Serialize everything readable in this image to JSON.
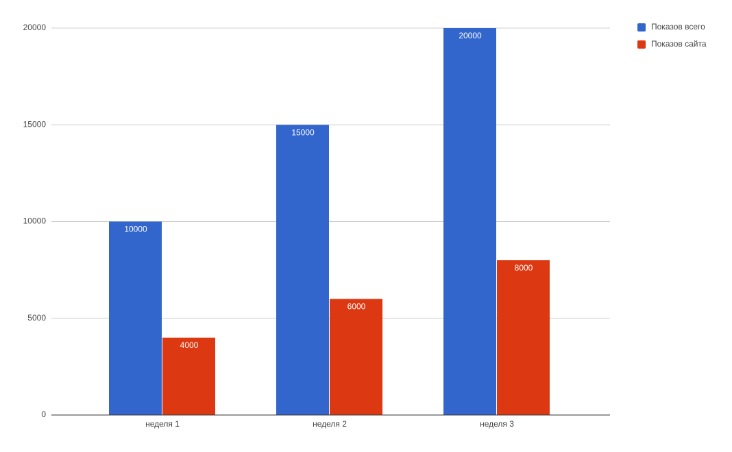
{
  "chart_data": {
    "type": "bar",
    "categories": [
      "неделя 1",
      "неделя 2",
      "неделя 3"
    ],
    "series": [
      {
        "name": "Показов всего",
        "color": "#3366cc",
        "values": [
          10000,
          15000,
          20000
        ]
      },
      {
        "name": "Показов сайта",
        "color": "#dc3912",
        "values": [
          4000,
          6000,
          8000
        ]
      }
    ],
    "ylim": [
      0,
      20000
    ],
    "yticks": [
      0,
      5000,
      10000,
      15000,
      20000
    ],
    "grid": true,
    "legend": "right",
    "data_labels": true
  }
}
